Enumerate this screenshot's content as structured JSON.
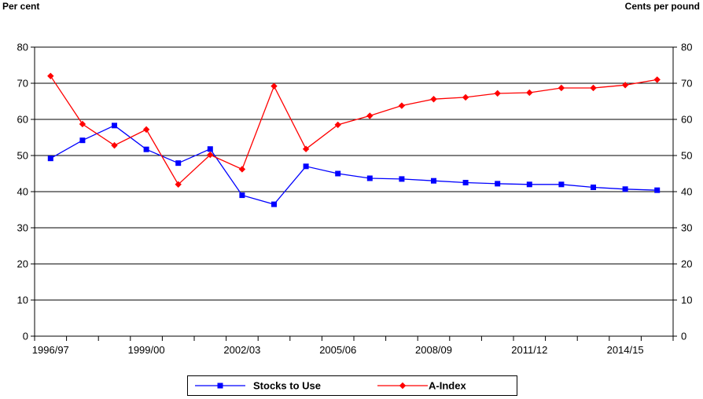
{
  "chart_data": {
    "type": "line",
    "left_axis_label": "Per cent",
    "right_axis_label": "Cents per pound",
    "ylim": [
      0,
      80
    ],
    "y_ticks": [
      0,
      10,
      20,
      30,
      40,
      50,
      60,
      70,
      80
    ],
    "right_ylim": [
      0,
      80
    ],
    "right_y_ticks": [
      0,
      10,
      20,
      30,
      40,
      50,
      60,
      70,
      80
    ],
    "grid": true,
    "legend_position": "bottom",
    "x": [
      "1996/97",
      "1997/98",
      "1998/99",
      "1999/00",
      "2000/01",
      "2001/02",
      "2002/03",
      "2003/04",
      "2004/05",
      "2005/06",
      "2006/07",
      "2007/08",
      "2008/09",
      "2009/10",
      "2010/11",
      "2011/12",
      "2012/13",
      "2013/14",
      "2014/15",
      "2015/16"
    ],
    "x_tick_labels": [
      {
        "index": 0,
        "label": "1996/97"
      },
      {
        "index": 3,
        "label": "1999/00"
      },
      {
        "index": 6,
        "label": "2002/03"
      },
      {
        "index": 9,
        "label": "2005/06"
      },
      {
        "index": 12,
        "label": "2008/09"
      },
      {
        "index": 15,
        "label": "2011/12"
      },
      {
        "index": 18,
        "label": "2014/15"
      }
    ],
    "series": [
      {
        "name": "Stocks to Use",
        "axis": "left",
        "color": "#0000ff",
        "marker": "square",
        "values": [
          49.2,
          54.2,
          58.3,
          51.7,
          47.9,
          51.8,
          39.0,
          36.5,
          47.0,
          45.0,
          43.7,
          43.5,
          43.0,
          42.5,
          42.2,
          42.0,
          42.0,
          41.2,
          40.7,
          40.4
        ]
      },
      {
        "name": "A-Index",
        "axis": "right",
        "color": "#ff0000",
        "marker": "diamond",
        "values": [
          72.0,
          58.7,
          52.8,
          57.2,
          42.0,
          50.2,
          46.2,
          69.2,
          51.8,
          58.5,
          61.0,
          63.8,
          65.6,
          66.1,
          67.2,
          67.4,
          68.7,
          68.7,
          69.5,
          71.0
        ]
      }
    ]
  }
}
